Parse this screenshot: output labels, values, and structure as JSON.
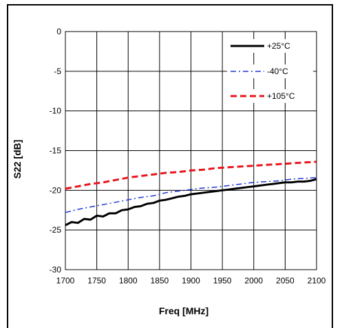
{
  "chart_data": {
    "type": "line",
    "xlabel": "Freq [MHz]",
    "ylabel": "S22 [dB]",
    "xlim": [
      1700,
      2100
    ],
    "ylim": [
      -30,
      0
    ],
    "xticks": [
      "1700",
      "1750",
      "1800",
      "1850",
      "1900",
      "1950",
      "2000",
      "2050",
      "2100"
    ],
    "yticks": [
      "0",
      "-5",
      "-10",
      "-15",
      "-20",
      "-25",
      "-30"
    ],
    "grid": true,
    "legend_position": "top-right",
    "series": [
      {
        "name": "+25°C",
        "color": "#000000",
        "dash": "solid",
        "x": [
          1700,
          1710,
          1720,
          1730,
          1740,
          1750,
          1760,
          1770,
          1780,
          1790,
          1800,
          1810,
          1820,
          1830,
          1840,
          1850,
          1860,
          1870,
          1880,
          1890,
          1900,
          1910,
          1920,
          1930,
          1940,
          1950,
          1960,
          1970,
          1980,
          1990,
          2000,
          2010,
          2020,
          2030,
          2040,
          2050,
          2060,
          2070,
          2080,
          2090,
          2100
        ],
        "y": [
          -24.4,
          -24.0,
          -24.1,
          -23.6,
          -23.7,
          -23.2,
          -23.3,
          -22.9,
          -22.9,
          -22.5,
          -22.4,
          -22.1,
          -22.0,
          -21.7,
          -21.6,
          -21.3,
          -21.2,
          -21.0,
          -20.8,
          -20.7,
          -20.5,
          -20.4,
          -20.3,
          -20.2,
          -20.1,
          -20.0,
          -19.9,
          -19.8,
          -19.7,
          -19.6,
          -19.5,
          -19.4,
          -19.3,
          -19.2,
          -19.1,
          -19.0,
          -19.0,
          -18.9,
          -18.9,
          -18.8,
          -18.6
        ]
      },
      {
        "name": "-40°C",
        "color": "#1a33d6",
        "dash": "dashdot",
        "x": [
          1700,
          1720,
          1740,
          1760,
          1780,
          1800,
          1820,
          1840,
          1850,
          1860,
          1880,
          1900,
          1920,
          1940,
          1960,
          1980,
          2000,
          2020,
          2040,
          2060,
          2080,
          2100
        ],
        "y": [
          -22.8,
          -22.4,
          -22.1,
          -21.8,
          -21.5,
          -21.2,
          -20.9,
          -20.7,
          -20.5,
          -20.3,
          -20.1,
          -19.9,
          -19.7,
          -19.6,
          -19.4,
          -19.2,
          -19.0,
          -18.9,
          -18.8,
          -18.6,
          -18.5,
          -18.4
        ]
      },
      {
        "name": "+105°C",
        "color": "#e8141b",
        "dash": "dashed",
        "x": [
          1700,
          1720,
          1740,
          1760,
          1780,
          1800,
          1820,
          1840,
          1860,
          1880,
          1900,
          1920,
          1940,
          1960,
          1980,
          2000,
          2020,
          2040,
          2060,
          2080,
          2100
        ],
        "y": [
          -19.8,
          -19.5,
          -19.2,
          -19.0,
          -18.7,
          -18.4,
          -18.2,
          -18.0,
          -17.8,
          -17.7,
          -17.5,
          -17.4,
          -17.2,
          -17.1,
          -17.0,
          -16.9,
          -16.8,
          -16.7,
          -16.6,
          -16.5,
          -16.4
        ]
      }
    ]
  }
}
